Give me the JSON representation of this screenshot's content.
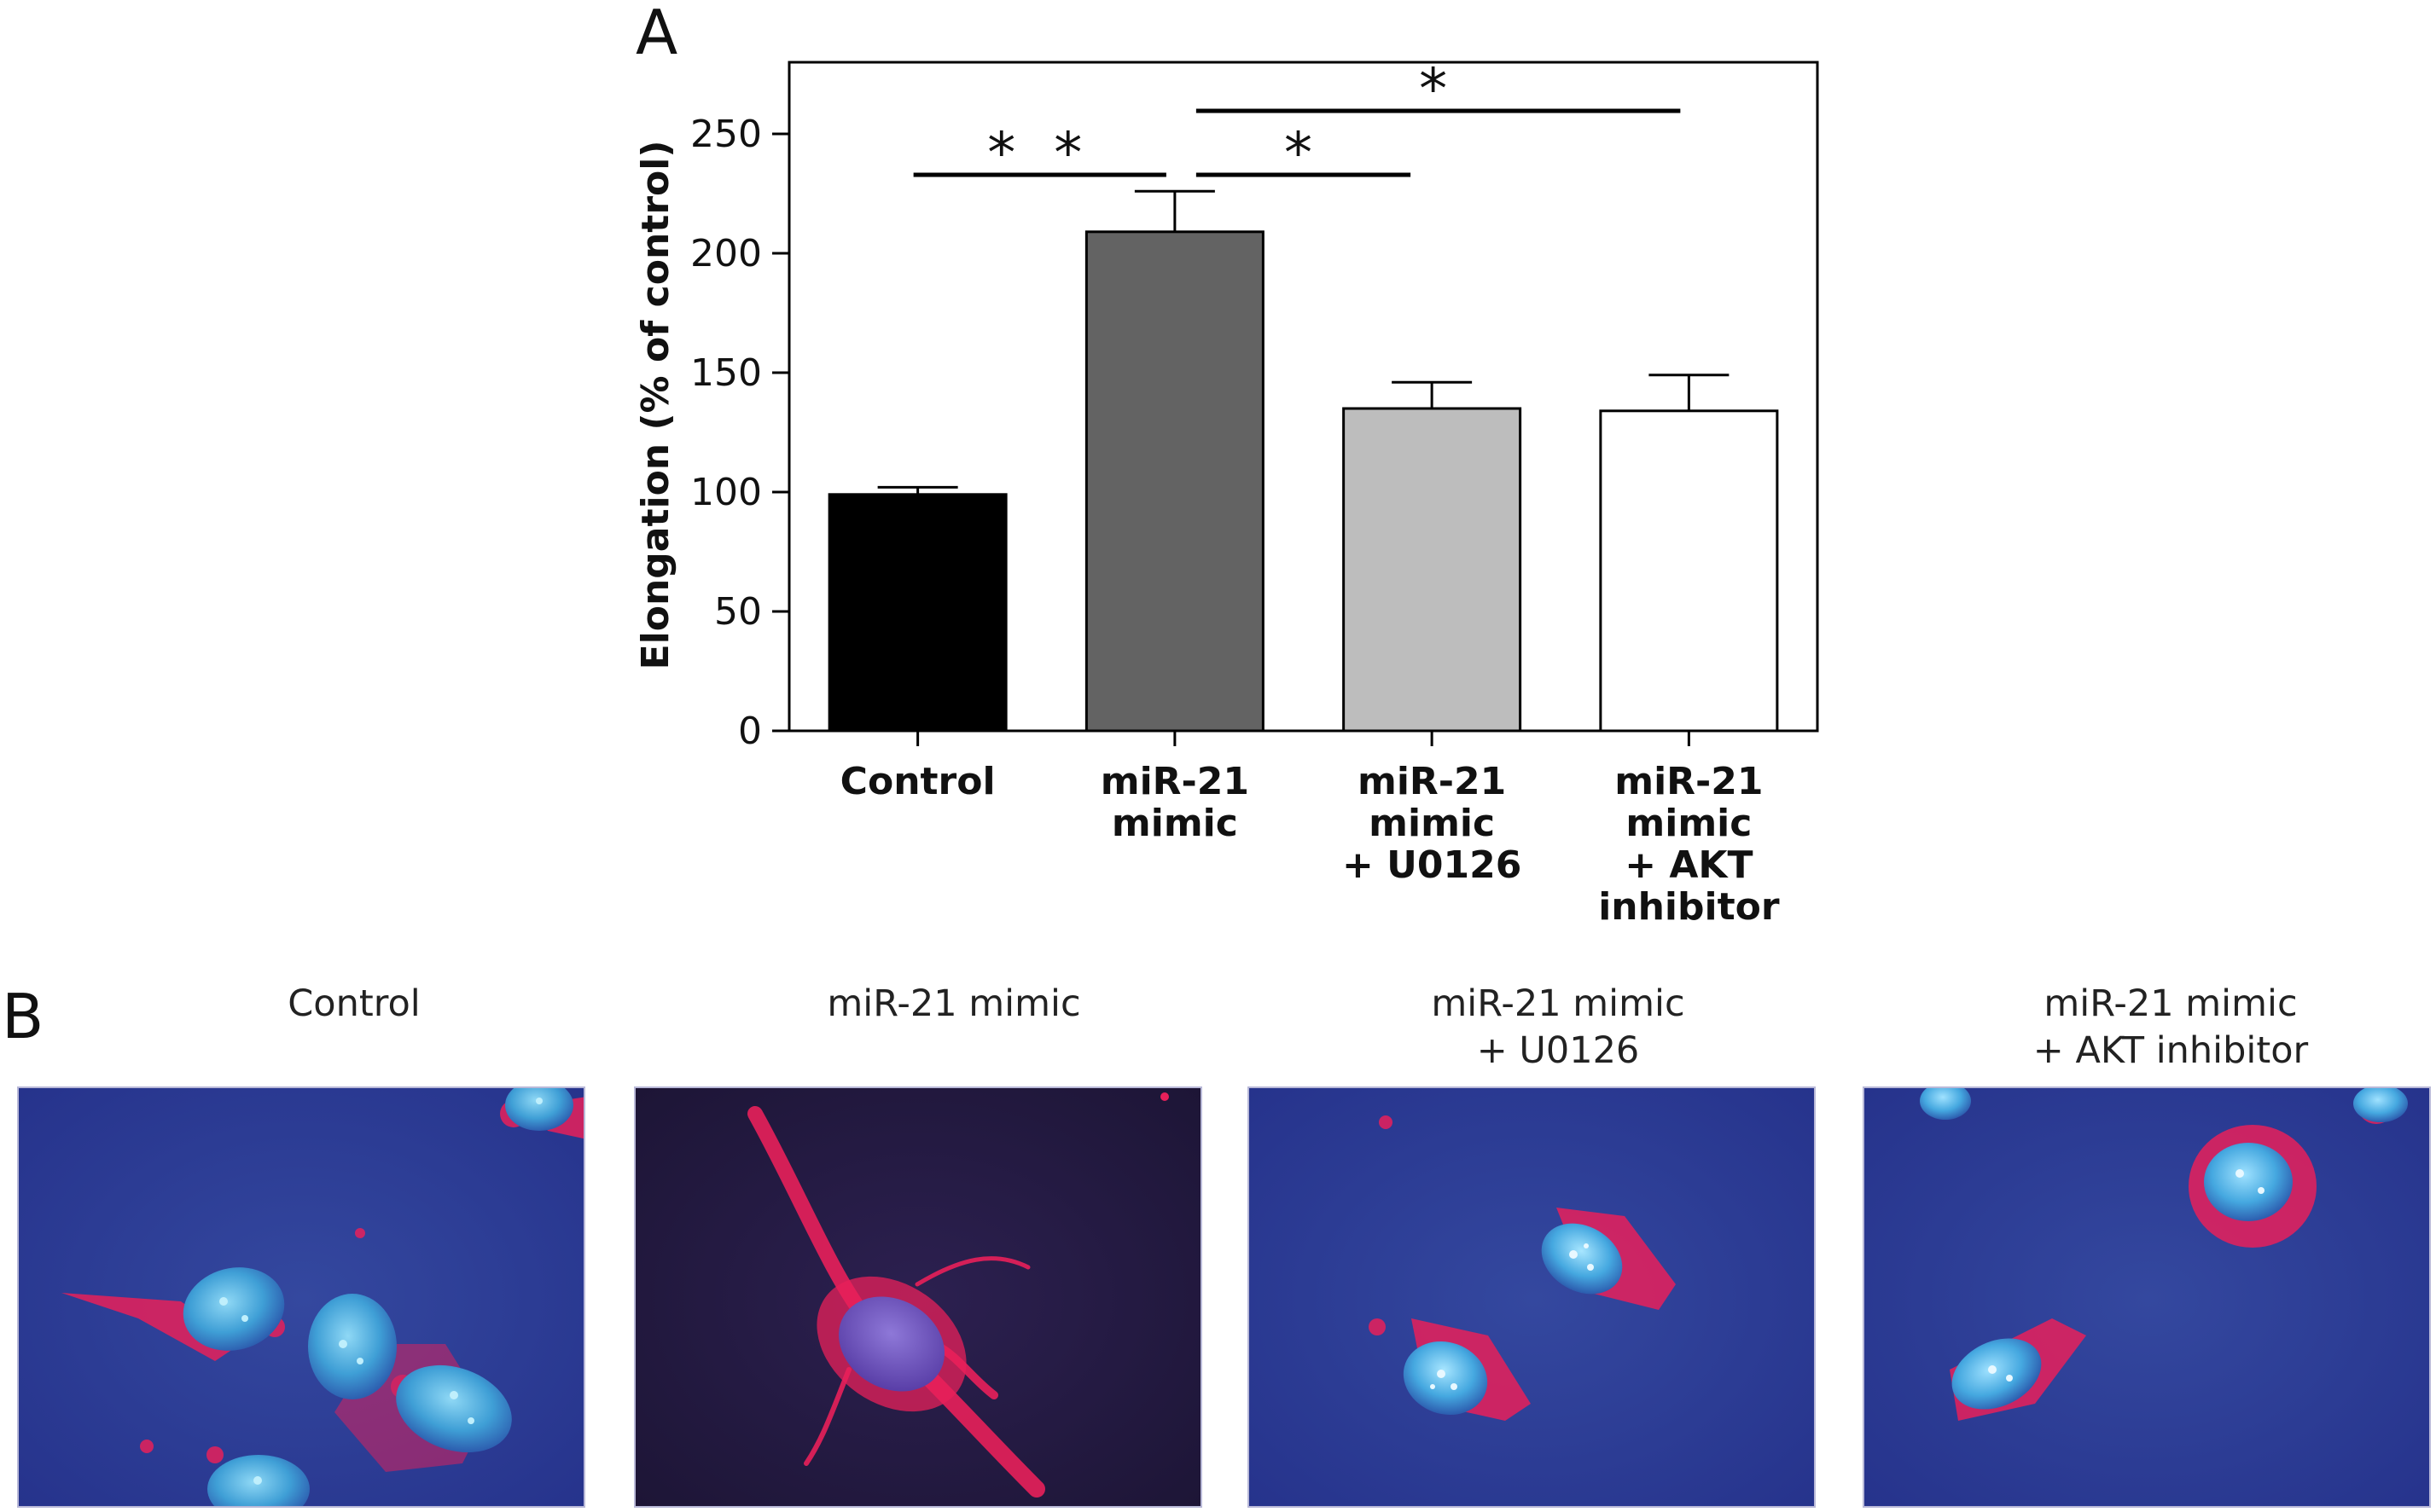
{
  "panel_a": {
    "letter": "A"
  },
  "panel_b": {
    "letter": "B"
  },
  "chart_data": {
    "type": "bar",
    "title": "",
    "ylabel": "Elongation (% of control)",
    "xlabel": "",
    "ylim": [
      0,
      280
    ],
    "yticks": [
      0,
      50,
      100,
      150,
      200,
      250
    ],
    "categories": [
      [
        "Control"
      ],
      [
        "miR-21",
        "mimic"
      ],
      [
        "miR-21",
        "mimic",
        "+ U0126"
      ],
      [
        "miR-21",
        "mimic",
        "+ AKT",
        "inhibitor"
      ]
    ],
    "values": [
      99,
      209,
      135,
      134
    ],
    "errors": [
      3,
      17,
      11,
      15
    ],
    "bar_colors": [
      "#000000",
      "#636363",
      "#bdbdbd",
      "#ffffff"
    ],
    "significance": [
      {
        "from": 0,
        "to": 1,
        "label": "* *"
      },
      {
        "from": 1,
        "to": 2,
        "label": "*"
      },
      {
        "from": 1,
        "to": 3,
        "label": "*"
      }
    ]
  },
  "micrographs": [
    {
      "label_lines": [
        "Control"
      ]
    },
    {
      "label_lines": [
        "miR-21 mimic"
      ]
    },
    {
      "label_lines": [
        "miR-21 mimic",
        "+ U0126"
      ]
    },
    {
      "label_lines": [
        "miR-21 mimic",
        "+ AKT inhibitor"
      ]
    }
  ],
  "colors": {
    "nucleus": "#3fa0dc",
    "actin": "#e8205a",
    "background_blue": "#2a3a9a",
    "background_dark": "#221a3c"
  }
}
